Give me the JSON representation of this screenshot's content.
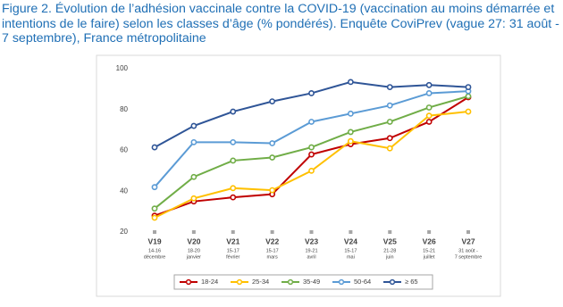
{
  "chart_data": {
    "type": "line",
    "title": "Figure 2. Évolution de l’adhésion vaccinale contre la COVID-19 (vaccination au moins démarrée et intentions de le faire) selon les classes d’âge (% pondérés). Enquête CoviPrev (vague 27: 31 août - 7 septembre), France métropolitaine",
    "categories": [
      "V19",
      "V20",
      "V21",
      "V22",
      "V23",
      "V24",
      "V25",
      "V26",
      "V27"
    ],
    "dates": [
      [
        "14-16",
        "décembre"
      ],
      [
        "18-20",
        "janvier"
      ],
      [
        "15-17",
        "février"
      ],
      [
        "15-17",
        "mars"
      ],
      [
        "19-21",
        "avril"
      ],
      [
        "15-17",
        "mai"
      ],
      [
        "21-28",
        "juin"
      ],
      [
        "15-21",
        "juillet"
      ],
      [
        "31 août -",
        "7 septembre"
      ]
    ],
    "ylim": [
      20,
      100
    ],
    "yticks": [
      20,
      40,
      60,
      80,
      100
    ],
    "grid": false,
    "legend": "bottom",
    "series": [
      {
        "name": "18-24",
        "color": "#c00000",
        "values": [
          28,
          35,
          37,
          38.5,
          58,
          63,
          66,
          74,
          86
        ]
      },
      {
        "name": "25-34",
        "color": "#ffc000",
        "values": [
          27,
          36.5,
          41.5,
          40.5,
          50,
          64.5,
          61,
          77,
          79
        ]
      },
      {
        "name": "35-49",
        "color": "#70ad47",
        "values": [
          31.5,
          47,
          55,
          56.5,
          61.5,
          69,
          74,
          81,
          86.5
        ]
      },
      {
        "name": "50-64",
        "color": "#5b9bd5",
        "values": [
          42,
          64,
          64,
          63.5,
          74,
          78,
          82,
          88,
          89
        ]
      },
      {
        "name": "≥ 65",
        "color": "#2f5597",
        "values": [
          61.5,
          72,
          79,
          84,
          88,
          93.5,
          91,
          92,
          91
        ]
      }
    ]
  }
}
